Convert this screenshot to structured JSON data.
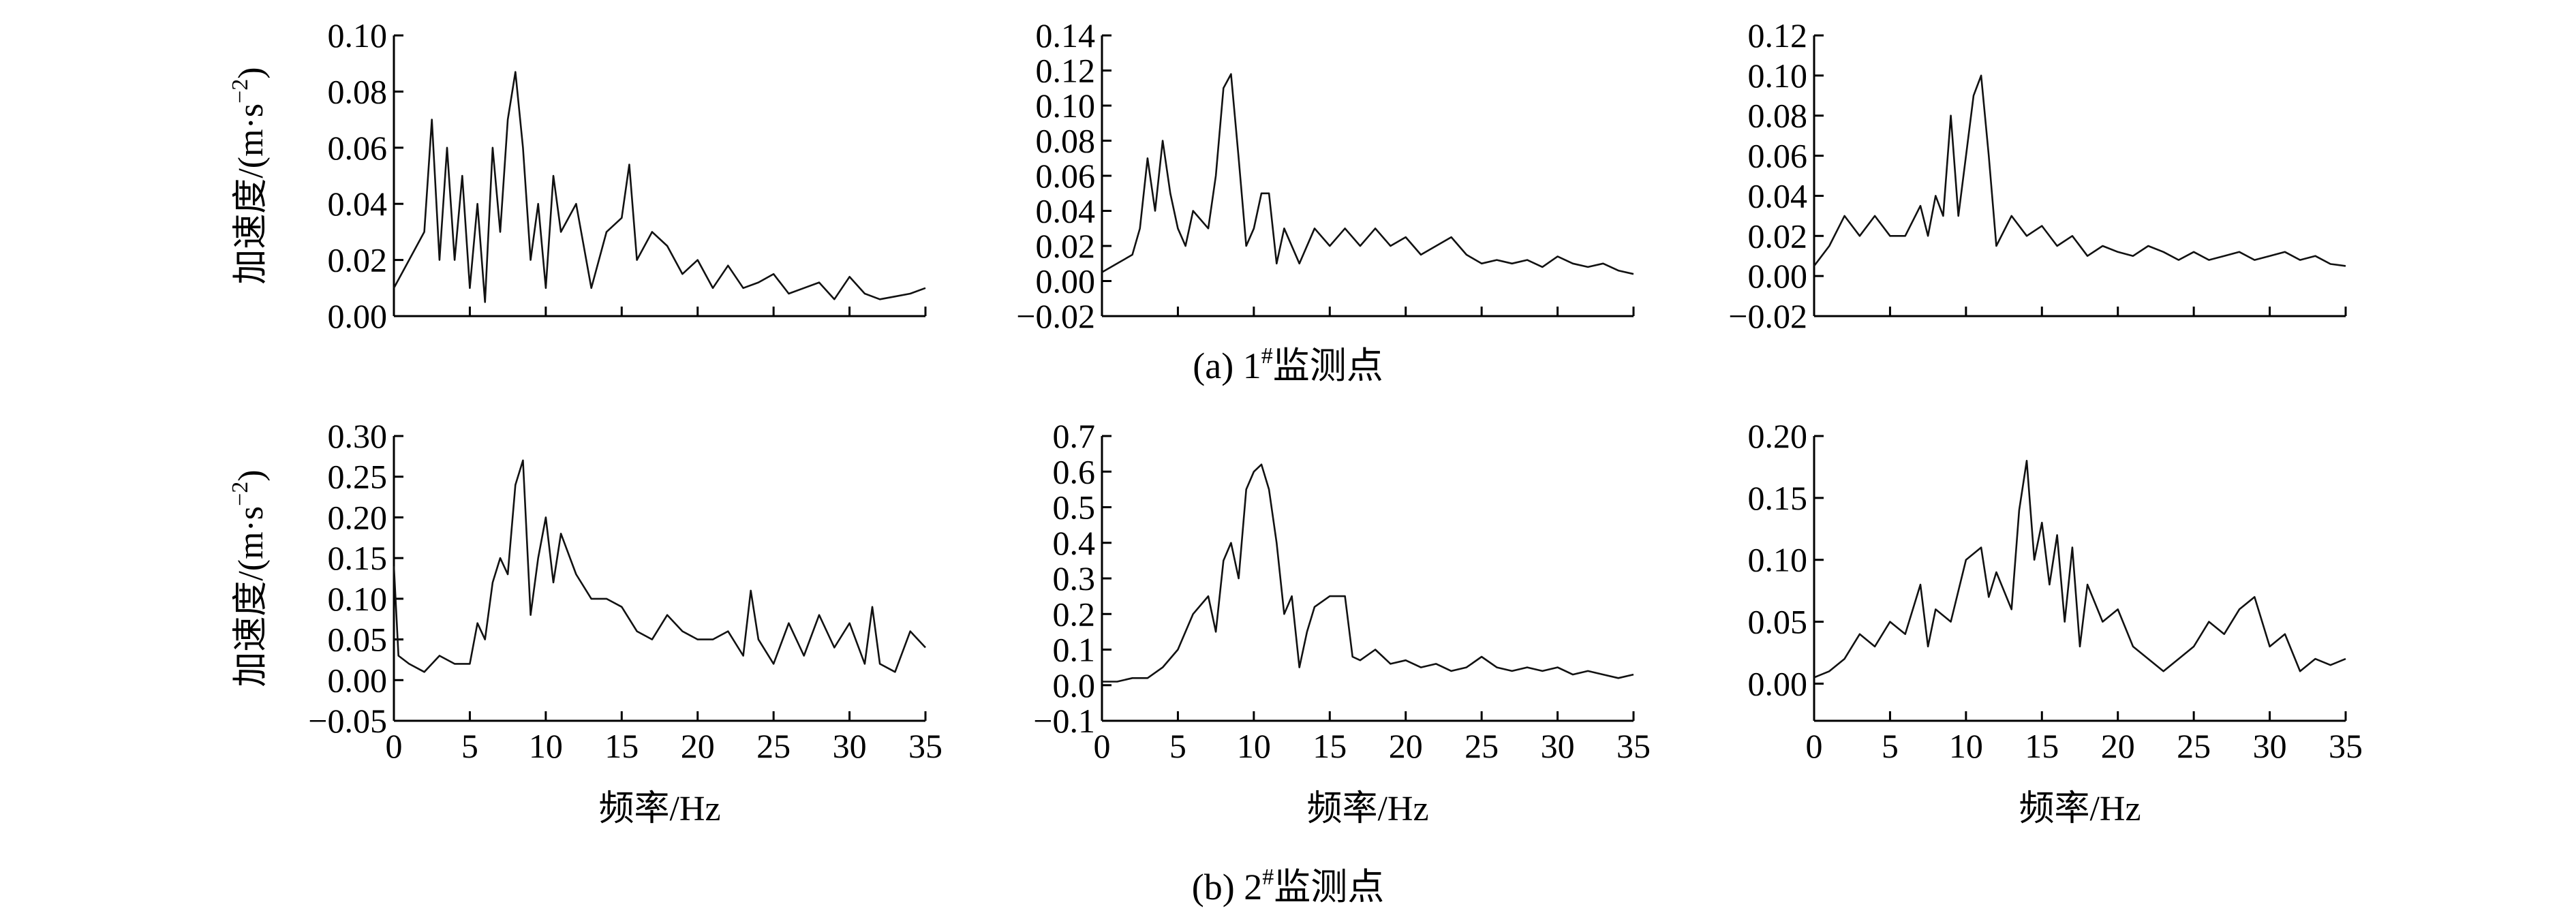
{
  "captions": {
    "a": {
      "pre": "(a) 1",
      "sup": "#",
      "post": "监测点"
    },
    "b": {
      "pre": "(b) 2",
      "sup": "#",
      "post": "监测点"
    }
  },
  "ylabel": {
    "main": "加速度/(m·s",
    "sup": "−2",
    "close": ")"
  },
  "xlabel": "频率/Hz",
  "chart_data": [
    {
      "id": "a1",
      "type": "line",
      "xlim": [
        0,
        35
      ],
      "ylim": [
        0,
        0.1
      ],
      "yticks": [
        "0.00",
        "0.02",
        "0.04",
        "0.06",
        "0.08",
        "0.10"
      ],
      "x": [
        0,
        1,
        2,
        2.5,
        3,
        3.5,
        4,
        4.5,
        5,
        5.5,
        6,
        6.5,
        7,
        7.5,
        8,
        8.5,
        9,
        9.5,
        10,
        10.5,
        11,
        12,
        13,
        14,
        15,
        15.5,
        16,
        17,
        18,
        19,
        20,
        21,
        22,
        23,
        24,
        25,
        26,
        27,
        28,
        29,
        30,
        31,
        32,
        33,
        34,
        35
      ],
      "y": [
        0.01,
        0.02,
        0.03,
        0.07,
        0.02,
        0.06,
        0.02,
        0.05,
        0.01,
        0.04,
        0.005,
        0.06,
        0.03,
        0.07,
        0.087,
        0.06,
        0.02,
        0.04,
        0.01,
        0.05,
        0.03,
        0.04,
        0.01,
        0.03,
        0.035,
        0.054,
        0.02,
        0.03,
        0.025,
        0.015,
        0.02,
        0.01,
        0.018,
        0.01,
        0.012,
        0.015,
        0.008,
        0.01,
        0.012,
        0.006,
        0.014,
        0.008,
        0.006,
        0.007,
        0.008,
        0.01
      ]
    },
    {
      "id": "a2",
      "type": "line",
      "xlim": [
        0,
        35
      ],
      "ylim": [
        -0.02,
        0.14
      ],
      "yticks": [
        "−0.02",
        "0.00",
        "0.02",
        "0.04",
        "0.06",
        "0.08",
        "0.10",
        "0.12",
        "0.14"
      ],
      "x": [
        0,
        1,
        2,
        2.5,
        3,
        3.5,
        4,
        4.5,
        5,
        5.5,
        6,
        7,
        7.5,
        8,
        8.5,
        9,
        9.5,
        10,
        10.5,
        11,
        11.5,
        12,
        13,
        14,
        15,
        16,
        17,
        18,
        19,
        20,
        21,
        22,
        23,
        24,
        25,
        26,
        27,
        28,
        29,
        30,
        31,
        32,
        33,
        34,
        35
      ],
      "y": [
        0.005,
        0.01,
        0.015,
        0.03,
        0.07,
        0.04,
        0.08,
        0.05,
        0.03,
        0.02,
        0.04,
        0.03,
        0.06,
        0.11,
        0.118,
        0.07,
        0.02,
        0.03,
        0.05,
        0.05,
        0.01,
        0.03,
        0.01,
        0.03,
        0.02,
        0.03,
        0.02,
        0.03,
        0.02,
        0.025,
        0.015,
        0.02,
        0.025,
        0.015,
        0.01,
        0.012,
        0.01,
        0.012,
        0.008,
        0.014,
        0.01,
        0.008,
        0.01,
        0.006,
        0.004
      ]
    },
    {
      "id": "a3",
      "type": "line",
      "xlim": [
        0,
        35
      ],
      "ylim": [
        -0.02,
        0.12
      ],
      "yticks": [
        "−0.02",
        "0.00",
        "0.02",
        "0.04",
        "0.06",
        "0.08",
        "0.10",
        "0.12"
      ],
      "x": [
        0,
        1,
        2,
        3,
        4,
        5,
        6,
        7,
        7.5,
        8,
        8.5,
        9,
        9.5,
        10,
        10.5,
        11,
        11.5,
        12,
        13,
        14,
        15,
        16,
        17,
        18,
        19,
        20,
        21,
        22,
        23,
        24,
        25,
        26,
        27,
        28,
        29,
        30,
        31,
        32,
        33,
        34,
        35
      ],
      "y": [
        0.005,
        0.015,
        0.03,
        0.02,
        0.03,
        0.02,
        0.02,
        0.035,
        0.02,
        0.04,
        0.03,
        0.08,
        0.03,
        0.06,
        0.09,
        0.1,
        0.06,
        0.015,
        0.03,
        0.02,
        0.025,
        0.015,
        0.02,
        0.01,
        0.015,
        0.012,
        0.01,
        0.015,
        0.012,
        0.008,
        0.012,
        0.008,
        0.01,
        0.012,
        0.008,
        0.01,
        0.012,
        0.008,
        0.01,
        0.006,
        0.005
      ]
    },
    {
      "id": "b1",
      "type": "line",
      "xlim": [
        0,
        35
      ],
      "ylim": [
        -0.05,
        0.3
      ],
      "yticks": [
        "−0.05",
        "0.00",
        "0.05",
        "0.10",
        "0.15",
        "0.20",
        "0.25",
        "0.30"
      ],
      "xticks": [
        "0",
        "5",
        "10",
        "15",
        "20",
        "25",
        "30",
        "35"
      ],
      "x": [
        0,
        0.3,
        1,
        2,
        3,
        4,
        5,
        5.5,
        6,
        6.5,
        7,
        7.5,
        8,
        8.5,
        9,
        9.5,
        10,
        10.5,
        11,
        12,
        13,
        14,
        15,
        16,
        17,
        18,
        19,
        20,
        21,
        22,
        23,
        23.5,
        24,
        25,
        26,
        27,
        28,
        29,
        30,
        31,
        31.5,
        32,
        33,
        34,
        35
      ],
      "y": [
        0.14,
        0.03,
        0.02,
        0.01,
        0.03,
        0.02,
        0.02,
        0.07,
        0.05,
        0.12,
        0.15,
        0.13,
        0.24,
        0.27,
        0.08,
        0.15,
        0.2,
        0.12,
        0.18,
        0.13,
        0.1,
        0.1,
        0.09,
        0.06,
        0.05,
        0.08,
        0.06,
        0.05,
        0.05,
        0.06,
        0.03,
        0.11,
        0.05,
        0.02,
        0.07,
        0.03,
        0.08,
        0.04,
        0.07,
        0.02,
        0.09,
        0.02,
        0.01,
        0.06,
        0.04
      ]
    },
    {
      "id": "b2",
      "type": "line",
      "xlim": [
        0,
        35
      ],
      "ylim": [
        -0.1,
        0.7
      ],
      "yticks": [
        "−0.1",
        "0.0",
        "0.1",
        "0.2",
        "0.3",
        "0.4",
        "0.5",
        "0.6",
        "0.7"
      ],
      "xticks": [
        "0",
        "5",
        "10",
        "15",
        "20",
        "25",
        "30",
        "35"
      ],
      "x": [
        0,
        1,
        2,
        3,
        4,
        5,
        6,
        7,
        7.5,
        8,
        8.5,
        9,
        9.5,
        10,
        10.5,
        11,
        11.5,
        12,
        12.5,
        13,
        13.5,
        14,
        15,
        16,
        16.5,
        17,
        18,
        19,
        20,
        21,
        22,
        23,
        24,
        25,
        26,
        27,
        28,
        29,
        30,
        31,
        32,
        33,
        34,
        35
      ],
      "y": [
        0.01,
        0.01,
        0.02,
        0.02,
        0.05,
        0.1,
        0.2,
        0.25,
        0.15,
        0.35,
        0.4,
        0.3,
        0.55,
        0.6,
        0.62,
        0.55,
        0.4,
        0.2,
        0.25,
        0.05,
        0.15,
        0.22,
        0.25,
        0.25,
        0.08,
        0.07,
        0.1,
        0.06,
        0.07,
        0.05,
        0.06,
        0.04,
        0.05,
        0.08,
        0.05,
        0.04,
        0.05,
        0.04,
        0.05,
        0.03,
        0.04,
        0.03,
        0.02,
        0.03
      ]
    },
    {
      "id": "b3",
      "type": "line",
      "xlim": [
        0,
        35
      ],
      "ylim": [
        -0.03,
        0.2
      ],
      "yticks": [
        "0.00",
        "0.05",
        "0.10",
        "0.15",
        "0.20"
      ],
      "xticks": [
        "0",
        "5",
        "10",
        "15",
        "20",
        "25",
        "30",
        "35"
      ],
      "x": [
        0,
        1,
        2,
        3,
        4,
        5,
        6,
        7,
        7.5,
        8,
        9,
        10,
        11,
        11.5,
        12,
        13,
        13.5,
        14,
        14.5,
        15,
        15.5,
        16,
        16.5,
        17,
        17.5,
        18,
        19,
        20,
        21,
        22,
        23,
        24,
        25,
        26,
        27,
        28,
        29,
        30,
        31,
        32,
        33,
        34,
        35
      ],
      "y": [
        0.005,
        0.01,
        0.02,
        0.04,
        0.03,
        0.05,
        0.04,
        0.08,
        0.03,
        0.06,
        0.05,
        0.1,
        0.11,
        0.07,
        0.09,
        0.06,
        0.14,
        0.18,
        0.1,
        0.13,
        0.08,
        0.12,
        0.05,
        0.11,
        0.03,
        0.08,
        0.05,
        0.06,
        0.03,
        0.02,
        0.01,
        0.02,
        0.03,
        0.05,
        0.04,
        0.06,
        0.07,
        0.03,
        0.04,
        0.01,
        0.02,
        0.015,
        0.02
      ]
    }
  ]
}
